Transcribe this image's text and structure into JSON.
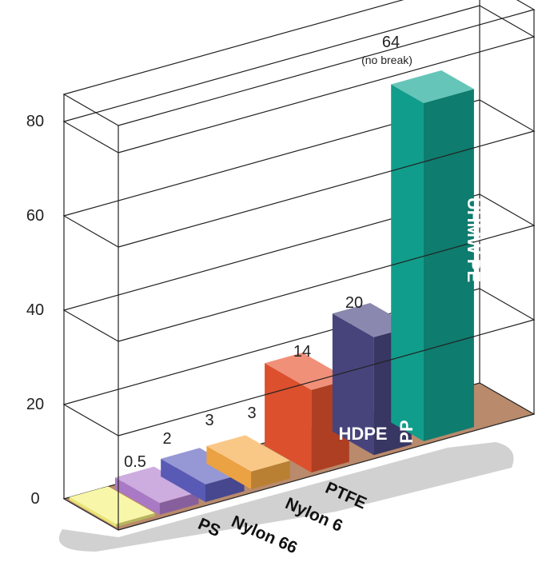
{
  "chart_data": {
    "type": "bar",
    "title": "",
    "xlabel": "",
    "ylabel": "",
    "ylim": [
      0,
      80
    ],
    "yticks": [
      "0",
      "20",
      "40",
      "60",
      "80"
    ],
    "grid": true,
    "categories": [
      "PS",
      "Nylon 66",
      "Nylon 6",
      "PTFE",
      "HDPE",
      "PP",
      "UHMW PE"
    ],
    "values": [
      0.5,
      2,
      3,
      3,
      14,
      20,
      64
    ],
    "value_labels": [
      "0.5",
      "2",
      "3",
      "3",
      "14",
      "20",
      "64"
    ],
    "annotations": [
      "(no break)"
    ],
    "colors": [
      "#f4f27a",
      "#b27fd0",
      "#5d5fbf",
      "#f7aa45",
      "#e8542f",
      "#4b4882",
      "#12a592"
    ],
    "floor_color": "#b98a6c"
  }
}
